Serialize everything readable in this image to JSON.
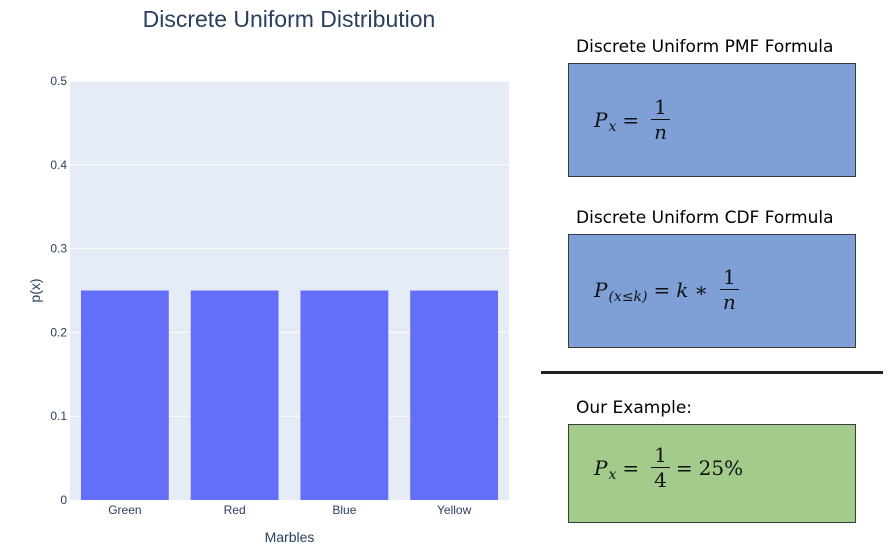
{
  "chart_data": {
    "type": "bar",
    "title": "Discrete Uniform Distribution",
    "xlabel": "Marbles",
    "ylabel": "p(x)",
    "categories": [
      "Green",
      "Red",
      "Blue",
      "Yellow"
    ],
    "values": [
      0.25,
      0.25,
      0.25,
      0.25
    ],
    "ylim": [
      0,
      0.5
    ],
    "yticks": [
      0,
      0.1,
      0.2,
      0.3,
      0.4,
      0.5
    ],
    "ytick_labels": [
      "0",
      "0.1",
      "0.2",
      "0.3",
      "0.4",
      "0.5"
    ],
    "grid": true,
    "colors": {
      "bar": "#636efa",
      "plot_bg": "#e5ecf6",
      "grid": "#ffffff",
      "text": "#2a3f5f"
    }
  },
  "panels": {
    "pmf": {
      "heading": "Discrete Uniform PMF Formula",
      "color": "#7fa0d6",
      "lhs": "P",
      "lhs_sub": "x",
      "eq": "=",
      "num": "1",
      "den": "n"
    },
    "cdf": {
      "heading": "Discrete Uniform CDF Formula",
      "color": "#7fa0d6",
      "lhs": "P",
      "lhs_sub": "(x≤k)",
      "eq": "=",
      "k": "k",
      "times": "∗",
      "num": "1",
      "den": "n"
    },
    "example": {
      "heading": "Our Example:",
      "color": "#a3cb8b",
      "lhs": "P",
      "lhs_sub": "x",
      "eq": "=",
      "num": "1",
      "den": "4",
      "eq2": "=",
      "result": "25%"
    }
  }
}
